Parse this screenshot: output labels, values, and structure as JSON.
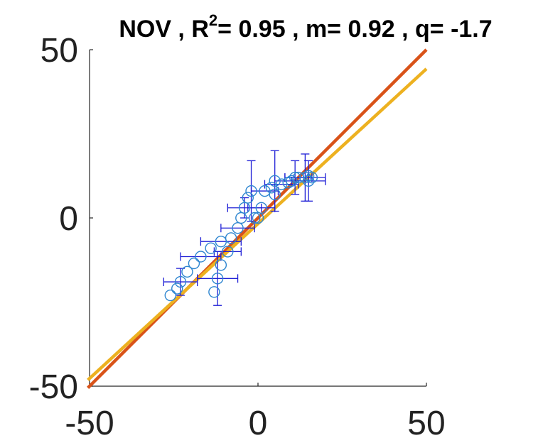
{
  "chart_data": {
    "type": "scatter",
    "title": {
      "text_pre": "NOV , R",
      "sup": "2",
      "text_post": "= 0.95 , m= 0.92 , q= -1.7"
    },
    "xlim": [
      -50,
      50
    ],
    "ylim": [
      -50,
      50
    ],
    "xticks": [
      -50,
      0,
      50
    ],
    "yticks": [
      -50,
      0,
      50
    ],
    "xtick_labels": [
      "-50",
      "0",
      "50"
    ],
    "ytick_labels": [
      "-50",
      "0",
      "50"
    ],
    "xlabel": "",
    "ylabel": "",
    "grid": false,
    "colors": {
      "points": "#2e86d0",
      "errorbars": "#1f1fd6",
      "identity_line": "#d95319",
      "fit_line": "#edb120"
    },
    "lines": [
      {
        "role": "identity",
        "slope": 1.0,
        "intercept": 0.0
      },
      {
        "role": "fit",
        "slope": 0.92,
        "intercept": -1.7
      }
    ],
    "points": [
      {
        "x": -26,
        "y": -23,
        "xerr": 0,
        "yerr": 0
      },
      {
        "x": -24,
        "y": -21,
        "xerr": 0,
        "yerr": 0
      },
      {
        "x": -23,
        "y": -19,
        "xerr": 5,
        "yerr": 4
      },
      {
        "x": -21,
        "y": -16,
        "xerr": 0,
        "yerr": 0
      },
      {
        "x": -19,
        "y": -13.5,
        "xerr": 0,
        "yerr": 0
      },
      {
        "x": -17,
        "y": -11.5,
        "xerr": 6,
        "yerr": 0
      },
      {
        "x": -14,
        "y": -9,
        "xerr": 0,
        "yerr": 0
      },
      {
        "x": -13,
        "y": -22,
        "xerr": 0,
        "yerr": 0
      },
      {
        "x": -12,
        "y": -18,
        "xerr": 6,
        "yerr": 8
      },
      {
        "x": -11,
        "y": -14,
        "xerr": 0,
        "yerr": 0
      },
      {
        "x": -11,
        "y": -7,
        "xerr": 6,
        "yerr": 0
      },
      {
        "x": -9,
        "y": -10,
        "xerr": 4,
        "yerr": 0
      },
      {
        "x": -8,
        "y": -6,
        "xerr": 0,
        "yerr": 0
      },
      {
        "x": -6,
        "y": -3,
        "xerr": 5,
        "yerr": 0
      },
      {
        "x": -5,
        "y": 0,
        "xerr": 0,
        "yerr": 0
      },
      {
        "x": -4,
        "y": 3,
        "xerr": 5,
        "yerr": 3
      },
      {
        "x": -3,
        "y": 6,
        "xerr": 0,
        "yerr": 0
      },
      {
        "x": -2,
        "y": 8,
        "xerr": 0,
        "yerr": 9
      },
      {
        "x": -1,
        "y": 0,
        "xerr": 0,
        "yerr": 0
      },
      {
        "x": 0,
        "y": 0,
        "xerr": 0,
        "yerr": 0
      },
      {
        "x": 1,
        "y": 3,
        "xerr": 4,
        "yerr": 0
      },
      {
        "x": 2,
        "y": 8,
        "xerr": 4,
        "yerr": 0
      },
      {
        "x": 4,
        "y": 9,
        "xerr": 0,
        "yerr": 0
      },
      {
        "x": 5,
        "y": 11,
        "xerr": 0,
        "yerr": 9
      },
      {
        "x": 5,
        "y": 7,
        "xerr": 0,
        "yerr": 0
      },
      {
        "x": 7,
        "y": 10,
        "xerr": 5,
        "yerr": 0
      },
      {
        "x": 9,
        "y": 10.5,
        "xerr": 0,
        "yerr": 0
      },
      {
        "x": 10,
        "y": 11,
        "xerr": 5,
        "yerr": 0
      },
      {
        "x": 11,
        "y": 12,
        "xerr": 0,
        "yerr": 5
      },
      {
        "x": 12,
        "y": 12,
        "xerr": 4,
        "yerr": 0
      },
      {
        "x": 14,
        "y": 12,
        "xerr": 6,
        "yerr": 7
      },
      {
        "x": 15,
        "y": 11,
        "xerr": 5,
        "yerr": 6
      },
      {
        "x": 15,
        "y": 12.5,
        "xerr": 0,
        "yerr": 0
      },
      {
        "x": 16,
        "y": 12,
        "xerr": 0,
        "yerr": 0
      }
    ]
  }
}
